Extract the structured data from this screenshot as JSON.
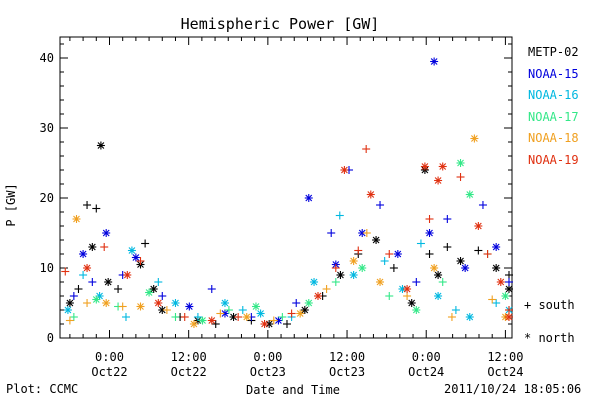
{
  "footer": {
    "plot_credit": "Plot: CCMC",
    "timestamp": "2011/10/24 18:05:06"
  },
  "markers": {
    "south": "+ south",
    "north": "* north"
  },
  "chart_data": {
    "type": "scatter",
    "title": "Hemispheric Power [GW]",
    "xlabel": "Date and Time",
    "ylabel": "P [GW]",
    "xlim": [
      -7.5,
      61
    ],
    "ylim": [
      0,
      43
    ],
    "x_unit": "hours since 2011-10-22 00:00 UT",
    "grid": false,
    "legend_position": "right",
    "y_ticks": [
      0,
      10,
      20,
      30,
      40
    ],
    "x_ticks": [
      {
        "x": 0,
        "time": "0:00",
        "date": "Oct22"
      },
      {
        "x": 12,
        "time": "12:00",
        "date": "Oct22"
      },
      {
        "x": 24,
        "time": "0:00",
        "date": "Oct23"
      },
      {
        "x": 36,
        "time": "12:00",
        "date": "Oct23"
      },
      {
        "x": 48,
        "time": "0:00",
        "date": "Oct24"
      },
      {
        "x": 60,
        "time": "12:00",
        "date": "Oct24"
      }
    ],
    "series": [
      {
        "name": "METP-02",
        "color": "#000000",
        "points": [
          {
            "x": -6.0,
            "y": 5,
            "m": "*"
          },
          {
            "x": -4.7,
            "y": 7,
            "m": "+"
          },
          {
            "x": -3.4,
            "y": 19,
            "m": "+"
          },
          {
            "x": -2.6,
            "y": 13,
            "m": "*"
          },
          {
            "x": -2.0,
            "y": 18.5,
            "m": "+"
          },
          {
            "x": -1.3,
            "y": 27.5,
            "m": "*"
          },
          {
            "x": -0.2,
            "y": 8,
            "m": "*"
          },
          {
            "x": 1.3,
            "y": 7,
            "m": "+"
          },
          {
            "x": 4.7,
            "y": 10.5,
            "m": "*"
          },
          {
            "x": 5.4,
            "y": 13.5,
            "m": "+"
          },
          {
            "x": 6.7,
            "y": 7,
            "m": "*"
          },
          {
            "x": 8.0,
            "y": 4,
            "m": "*"
          },
          {
            "x": 10.7,
            "y": 3,
            "m": "+"
          },
          {
            "x": 13.4,
            "y": 2.5,
            "m": "*"
          },
          {
            "x": 16.1,
            "y": 2,
            "m": "+"
          },
          {
            "x": 18.8,
            "y": 3,
            "m": "*"
          },
          {
            "x": 21.5,
            "y": 2.5,
            "m": "+"
          },
          {
            "x": 24.2,
            "y": 2,
            "m": "*"
          },
          {
            "x": 26.9,
            "y": 2,
            "m": "+"
          },
          {
            "x": 29.6,
            "y": 4,
            "m": "*"
          },
          {
            "x": 32.3,
            "y": 6,
            "m": "+"
          },
          {
            "x": 35.0,
            "y": 9,
            "m": "*"
          },
          {
            "x": 37.7,
            "y": 12,
            "m": "+"
          },
          {
            "x": 40.4,
            "y": 14,
            "m": "*"
          },
          {
            "x": 43.1,
            "y": 10,
            "m": "+"
          },
          {
            "x": 45.8,
            "y": 5,
            "m": "*"
          },
          {
            "x": 47.8,
            "y": 24,
            "m": "*"
          },
          {
            "x": 48.5,
            "y": 12,
            "m": "+"
          },
          {
            "x": 49.8,
            "y": 9,
            "m": "*"
          },
          {
            "x": 51.2,
            "y": 13,
            "m": "+"
          },
          {
            "x": 53.2,
            "y": 11,
            "m": "*"
          },
          {
            "x": 55.9,
            "y": 12.5,
            "m": "+"
          },
          {
            "x": 58.6,
            "y": 10,
            "m": "*"
          },
          {
            "x": 61.0,
            "y": 9,
            "m": "+"
          },
          {
            "x": 62.0,
            "y": 7,
            "m": "*"
          }
        ]
      },
      {
        "name": "NOAA-15",
        "color": "#0000dd",
        "points": [
          {
            "x": -5.4,
            "y": 6,
            "m": "+"
          },
          {
            "x": -4.0,
            "y": 12,
            "m": "*"
          },
          {
            "x": -2.6,
            "y": 8,
            "m": "+"
          },
          {
            "x": -0.5,
            "y": 15,
            "m": "*"
          },
          {
            "x": 2.0,
            "y": 9,
            "m": "+"
          },
          {
            "x": 4.0,
            "y": 11.5,
            "m": "*"
          },
          {
            "x": 8.0,
            "y": 6,
            "m": "+"
          },
          {
            "x": 12.1,
            "y": 4.5,
            "m": "*"
          },
          {
            "x": 15.5,
            "y": 7,
            "m": "+"
          },
          {
            "x": 17.5,
            "y": 3.5,
            "m": "*"
          },
          {
            "x": 21.5,
            "y": 3,
            "m": "+"
          },
          {
            "x": 25.6,
            "y": 2.5,
            "m": "*"
          },
          {
            "x": 28.3,
            "y": 5,
            "m": "+"
          },
          {
            "x": 30.2,
            "y": 20,
            "m": "*"
          },
          {
            "x": 33.6,
            "y": 15,
            "m": "+"
          },
          {
            "x": 34.3,
            "y": 10.5,
            "m": "*"
          },
          {
            "x": 36.3,
            "y": 24,
            "m": "+"
          },
          {
            "x": 38.3,
            "y": 15,
            "m": "*"
          },
          {
            "x": 41.0,
            "y": 19,
            "m": "+"
          },
          {
            "x": 43.7,
            "y": 12,
            "m": "*"
          },
          {
            "x": 46.5,
            "y": 8,
            "m": "+"
          },
          {
            "x": 48.5,
            "y": 15,
            "m": "*"
          },
          {
            "x": 49.2,
            "y": 39.5,
            "m": "*"
          },
          {
            "x": 51.2,
            "y": 17,
            "m": "+"
          },
          {
            "x": 53.9,
            "y": 10,
            "m": "*"
          },
          {
            "x": 56.6,
            "y": 19,
            "m": "+"
          },
          {
            "x": 58.6,
            "y": 13,
            "m": "*"
          },
          {
            "x": 61.3,
            "y": 8,
            "m": "+"
          }
        ]
      },
      {
        "name": "NOAA-16",
        "color": "#00b8e0",
        "points": [
          {
            "x": -6.3,
            "y": 4,
            "m": "*"
          },
          {
            "x": -4.0,
            "y": 9,
            "m": "+"
          },
          {
            "x": -1.5,
            "y": 6,
            "m": "*"
          },
          {
            "x": 2.5,
            "y": 3,
            "m": "+"
          },
          {
            "x": 3.4,
            "y": 12.5,
            "m": "*"
          },
          {
            "x": 7.4,
            "y": 8,
            "m": "+"
          },
          {
            "x": 10.0,
            "y": 5,
            "m": "*"
          },
          {
            "x": 13.4,
            "y": 3,
            "m": "+"
          },
          {
            "x": 17.5,
            "y": 5,
            "m": "*"
          },
          {
            "x": 20.2,
            "y": 4,
            "m": "+"
          },
          {
            "x": 22.9,
            "y": 3.5,
            "m": "*"
          },
          {
            "x": 27.6,
            "y": 3,
            "m": "+"
          },
          {
            "x": 31.0,
            "y": 8,
            "m": "*"
          },
          {
            "x": 34.9,
            "y": 17.5,
            "m": "+"
          },
          {
            "x": 37.0,
            "y": 9,
            "m": "*"
          },
          {
            "x": 41.7,
            "y": 11,
            "m": "+"
          },
          {
            "x": 44.4,
            "y": 7,
            "m": "*"
          },
          {
            "x": 47.2,
            "y": 13.5,
            "m": "+"
          },
          {
            "x": 49.8,
            "y": 6,
            "m": "*"
          },
          {
            "x": 52.5,
            "y": 4,
            "m": "+"
          },
          {
            "x": 54.6,
            "y": 3,
            "m": "*"
          },
          {
            "x": 58.6,
            "y": 5,
            "m": "+"
          },
          {
            "x": 61.3,
            "y": 4,
            "m": "*"
          }
        ]
      },
      {
        "name": "NOAA-17",
        "color": "#33e888",
        "points": [
          {
            "x": -5.4,
            "y": 3,
            "m": "+"
          },
          {
            "x": -2.0,
            "y": 5.5,
            "m": "*"
          },
          {
            "x": 1.3,
            "y": 4.5,
            "m": "+"
          },
          {
            "x": 6.0,
            "y": 6.5,
            "m": "*"
          },
          {
            "x": 10.0,
            "y": 3,
            "m": "+"
          },
          {
            "x": 14.1,
            "y": 2.5,
            "m": "*"
          },
          {
            "x": 18.1,
            "y": 4,
            "m": "+"
          },
          {
            "x": 22.2,
            "y": 4.5,
            "m": "*"
          },
          {
            "x": 26.2,
            "y": 3,
            "m": "+"
          },
          {
            "x": 30.2,
            "y": 5,
            "m": "*"
          },
          {
            "x": 34.3,
            "y": 8,
            "m": "+"
          },
          {
            "x": 38.3,
            "y": 10,
            "m": "*"
          },
          {
            "x": 42.4,
            "y": 6,
            "m": "+"
          },
          {
            "x": 46.5,
            "y": 4,
            "m": "*"
          },
          {
            "x": 50.5,
            "y": 8,
            "m": "+"
          },
          {
            "x": 53.2,
            "y": 25,
            "m": "*"
          },
          {
            "x": 54.6,
            "y": 20.5,
            "m": "*"
          },
          {
            "x": 57.3,
            "y": 12,
            "m": "+"
          },
          {
            "x": 60.0,
            "y": 6,
            "m": "*"
          }
        ]
      },
      {
        "name": "NOAA-18",
        "color": "#f0a020",
        "points": [
          {
            "x": -6.0,
            "y": 2.5,
            "m": "+"
          },
          {
            "x": -5.0,
            "y": 17,
            "m": "*"
          },
          {
            "x": -3.4,
            "y": 5,
            "m": "+"
          },
          {
            "x": -0.5,
            "y": 5,
            "m": "*"
          },
          {
            "x": 2.0,
            "y": 4.5,
            "m": "+"
          },
          {
            "x": 4.7,
            "y": 4.5,
            "m": "*"
          },
          {
            "x": 8.7,
            "y": 4,
            "m": "+"
          },
          {
            "x": 12.8,
            "y": 2,
            "m": "*"
          },
          {
            "x": 16.8,
            "y": 3.5,
            "m": "+"
          },
          {
            "x": 20.8,
            "y": 3,
            "m": "*"
          },
          {
            "x": 24.9,
            "y": 2.5,
            "m": "+"
          },
          {
            "x": 28.9,
            "y": 3.5,
            "m": "*"
          },
          {
            "x": 32.9,
            "y": 7,
            "m": "+"
          },
          {
            "x": 37.0,
            "y": 11,
            "m": "*"
          },
          {
            "x": 39.0,
            "y": 15,
            "m": "+"
          },
          {
            "x": 41.0,
            "y": 8,
            "m": "*"
          },
          {
            "x": 45.1,
            "y": 6,
            "m": "+"
          },
          {
            "x": 49.2,
            "y": 10,
            "m": "*"
          },
          {
            "x": 51.9,
            "y": 3,
            "m": "+"
          },
          {
            "x": 55.3,
            "y": 28.5,
            "m": "*"
          },
          {
            "x": 58.0,
            "y": 5.5,
            "m": "+"
          },
          {
            "x": 60.0,
            "y": 3,
            "m": "*"
          }
        ]
      },
      {
        "name": "NOAA-19",
        "color": "#e03010",
        "points": [
          {
            "x": -6.7,
            "y": 9.5,
            "m": "+"
          },
          {
            "x": -3.4,
            "y": 10,
            "m": "*"
          },
          {
            "x": -0.8,
            "y": 13,
            "m": "+"
          },
          {
            "x": 2.7,
            "y": 9,
            "m": "*"
          },
          {
            "x": 4.7,
            "y": 11,
            "m": "+"
          },
          {
            "x": 7.4,
            "y": 5,
            "m": "*"
          },
          {
            "x": 11.4,
            "y": 3,
            "m": "+"
          },
          {
            "x": 15.5,
            "y": 2.5,
            "m": "*"
          },
          {
            "x": 19.5,
            "y": 3,
            "m": "+"
          },
          {
            "x": 23.5,
            "y": 2,
            "m": "*"
          },
          {
            "x": 27.6,
            "y": 3.5,
            "m": "+"
          },
          {
            "x": 31.6,
            "y": 6,
            "m": "*"
          },
          {
            "x": 34.3,
            "y": 10,
            "m": "+"
          },
          {
            "x": 35.6,
            "y": 24,
            "m": "*"
          },
          {
            "x": 37.7,
            "y": 12.5,
            "m": "+"
          },
          {
            "x": 38.9,
            "y": 27,
            "m": "+"
          },
          {
            "x": 39.6,
            "y": 20.5,
            "m": "*"
          },
          {
            "x": 42.4,
            "y": 12,
            "m": "+"
          },
          {
            "x": 45.1,
            "y": 7,
            "m": "*"
          },
          {
            "x": 47.8,
            "y": 24.5,
            "m": "*"
          },
          {
            "x": 48.5,
            "y": 17,
            "m": "+"
          },
          {
            "x": 49.8,
            "y": 22.5,
            "m": "*"
          },
          {
            "x": 50.5,
            "y": 24.5,
            "m": "*"
          },
          {
            "x": 53.2,
            "y": 23,
            "m": "+"
          },
          {
            "x": 55.9,
            "y": 16,
            "m": "*"
          },
          {
            "x": 57.3,
            "y": 12,
            "m": "+"
          },
          {
            "x": 59.3,
            "y": 8,
            "m": "*"
          },
          {
            "x": 61.3,
            "y": 4,
            "m": "+"
          },
          {
            "x": 62.7,
            "y": 3,
            "m": "*"
          }
        ]
      }
    ]
  }
}
